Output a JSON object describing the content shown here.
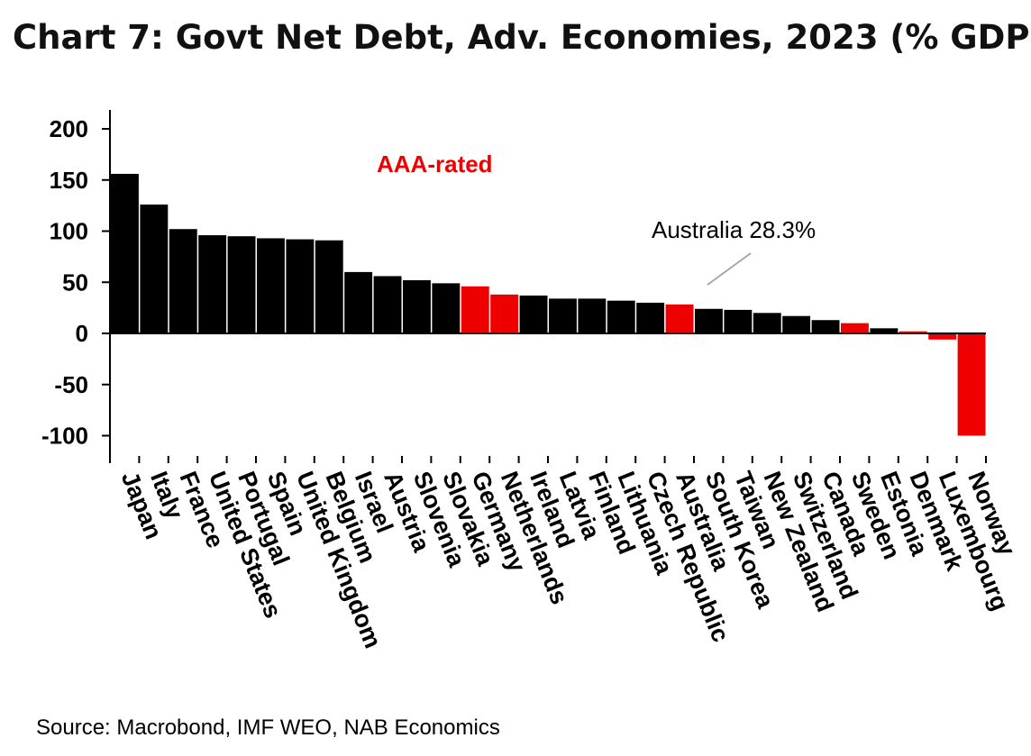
{
  "title": "Chart 7: Govt Net Debt, Adv. Economies, 2023 (% GDP)",
  "source": "Source: Macrobond, IMF WEO, NAB Economics",
  "chart_data": {
    "type": "bar",
    "title": "Chart 7: Govt Net Debt, Adv. Economies, 2023 (% GDP)",
    "xlabel": "",
    "ylabel": "",
    "ylim": [
      -110,
      220
    ],
    "yticks": [
      200,
      150,
      100,
      50,
      0,
      -50,
      -100
    ],
    "grid": false,
    "categories": [
      "Japan",
      "Italy",
      "France",
      "United States",
      "Portugal",
      "Spain",
      "United Kingdom",
      "Belgium",
      "Israel",
      "Austria",
      "Slovenia",
      "Slovakia",
      "Germany",
      "Netherlands",
      "Ireland",
      "Latvia",
      "Finland",
      "Lithuania",
      "Czech Republic",
      "Australia",
      "South Korea",
      "Taiwan",
      "New Zealand",
      "Switzerland",
      "Canada",
      "Sweden",
      "Estonia",
      "Denmark",
      "Luxembourg",
      "Norway"
    ],
    "values": [
      156,
      126,
      102,
      96,
      95,
      93,
      92,
      91,
      60,
      56,
      52,
      49,
      46,
      38,
      37,
      34,
      34,
      32,
      30,
      28.3,
      24,
      23,
      20,
      17,
      13,
      10,
      5,
      2,
      -6,
      -100
    ],
    "aaa_rated": [
      false,
      false,
      false,
      false,
      false,
      false,
      false,
      false,
      false,
      false,
      false,
      false,
      true,
      true,
      false,
      false,
      false,
      false,
      false,
      true,
      false,
      false,
      false,
      false,
      false,
      true,
      false,
      true,
      true,
      true
    ],
    "colors": {
      "default": "#000000",
      "aaa": "#ee0000"
    },
    "annotations": [
      {
        "text": "AAA-rated",
        "color": "#ee0000"
      },
      {
        "text": "Australia 28.3%",
        "color": "#000000"
      }
    ]
  }
}
